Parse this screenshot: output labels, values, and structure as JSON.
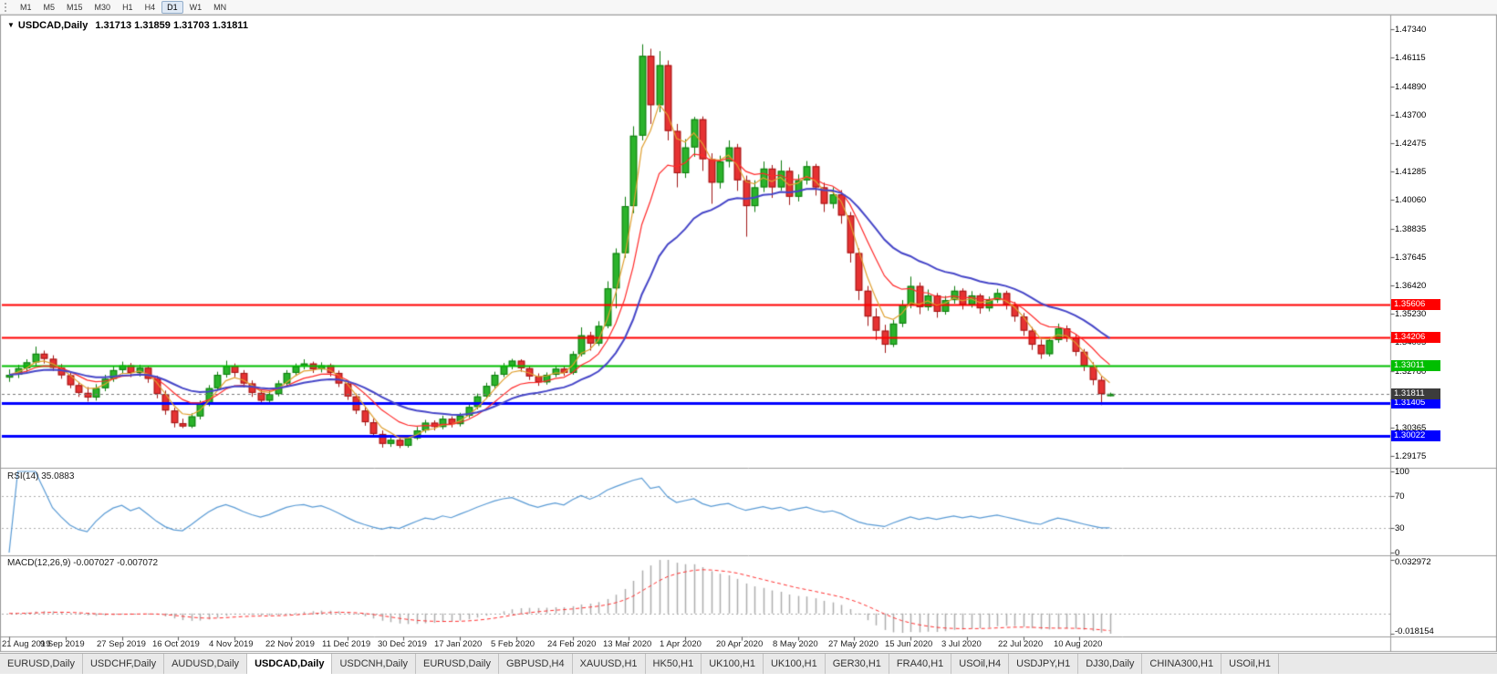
{
  "toolbar": {
    "timeframes": [
      "M1",
      "M5",
      "M15",
      "M30",
      "H1",
      "H4",
      "D1",
      "W1",
      "MN"
    ],
    "active_timeframe": "D1"
  },
  "chart_title": {
    "symbol": "USDCAD,Daily",
    "ohlc": "1.31713 1.31859 1.31703 1.31811"
  },
  "indicators": {
    "rsi_label": "RSI(14) 35.0883",
    "macd_label": "MACD(12,26,9) -0.007027 -0.007072"
  },
  "chart_data": {
    "type": "candlestick",
    "symbol": "USDCAD",
    "timeframe": "Daily",
    "x_labels": [
      "21 Aug 2019",
      "9 Sep 2019",
      "27 Sep 2019",
      "16 Oct 2019",
      "4 Nov 2019",
      "22 Nov 2019",
      "11 Dec 2019",
      "30 Dec 2019",
      "17 Jan 2020",
      "5 Feb 2020",
      "24 Feb 2020",
      "13 Mar 2020",
      "1 Apr 2020",
      "20 Apr 2020",
      "8 May 2020",
      "27 May 2020",
      "15 Jun 2020",
      "3 Jul 2020",
      "22 Jul 2020",
      "10 Aug 2020"
    ],
    "price_axis_labels": [
      "1.47340",
      "1.46115",
      "1.44890",
      "1.43700",
      "1.42475",
      "1.41285",
      "1.40060",
      "1.38835",
      "1.37645",
      "1.36420",
      "1.35230",
      "1.34005",
      "1.32780",
      "1.31590",
      "1.30365",
      "1.29175"
    ],
    "axis_range": {
      "top": 1.478,
      "bottom": 1.287
    },
    "colors": {
      "background": "#FFFFFF",
      "bull_body": "#2BB32B",
      "bull_border": "#0E7C0E",
      "bear_body": "#E63232",
      "bear_border": "#A01616",
      "ma_gold": "#E0A030",
      "ma_red": "#FF2A2A",
      "ma_blue": "#4646C8",
      "rsi_line": "#5A9BD5",
      "macd_hist": "#ADADAD",
      "macd_signal": "#FF3333",
      "level_red": "#FF0000",
      "level_green": "#00BE00",
      "level_blue": "#0000FF",
      "pane_border": "#9B9B9B",
      "current_price_tag": "#3C3C3C"
    },
    "moving_averages": [
      {
        "name": "ema-fast",
        "period": 4,
        "color": "#E0A030",
        "width": 1.2
      },
      {
        "name": "ema-mid",
        "period": 9,
        "color": "#FF2A2A",
        "width": 1.2
      },
      {
        "name": "ema-slow",
        "period": 20,
        "color": "#4646C8",
        "width": 2
      }
    ],
    "levels": [
      {
        "price": 1.35606,
        "label": "1.35606",
        "color": "#FF0000",
        "width": 2
      },
      {
        "price": 1.34206,
        "label": "1.34206",
        "color": "#FF0000",
        "width": 2
      },
      {
        "price": 1.33011,
        "label": "1.33011",
        "color": "#00BE00",
        "width": 2
      },
      {
        "price": 1.31405,
        "label": "1.31405",
        "color": "#0000FF",
        "width": 3
      },
      {
        "price": 1.30022,
        "label": "1.30022",
        "color": "#0000FF",
        "width": 3
      }
    ],
    "current_price": {
      "value": 1.31811,
      "label": "1.31811"
    },
    "rsi": {
      "period": 14,
      "levels": [
        70,
        30
      ],
      "axis_labels": [
        "100",
        "70",
        "30",
        "0"
      ],
      "axis_values": [
        100,
        70,
        30,
        0
      ],
      "range": [
        0,
        100
      ],
      "last_value": 35.0883
    },
    "macd": {
      "fast": 12,
      "slow": 26,
      "signal": 9,
      "axis_labels": [
        "0.032972",
        "-0.018154"
      ],
      "range": [
        -0.018154,
        0.032972
      ],
      "last_macd": -0.007027,
      "last_signal": -0.007072
    },
    "candles": [
      [
        1.325,
        1.3285,
        1.3232,
        1.3262
      ],
      [
        1.3262,
        1.3305,
        1.3248,
        1.329
      ],
      [
        1.329,
        1.3328,
        1.3275,
        1.3315
      ],
      [
        1.3315,
        1.3382,
        1.33,
        1.3352
      ],
      [
        1.3352,
        1.3365,
        1.331,
        1.333
      ],
      [
        1.333,
        1.3345,
        1.3278,
        1.3292
      ],
      [
        1.3292,
        1.3308,
        1.3245,
        1.326
      ],
      [
        1.326,
        1.3272,
        1.3205,
        1.3218
      ],
      [
        1.3218,
        1.3232,
        1.3168,
        1.3185
      ],
      [
        1.3185,
        1.321,
        1.3148,
        1.3165
      ],
      [
        1.3165,
        1.3222,
        1.3152,
        1.3205
      ],
      [
        1.3205,
        1.3262,
        1.3192,
        1.3245
      ],
      [
        1.3245,
        1.33,
        1.3232,
        1.3282
      ],
      [
        1.3282,
        1.3318,
        1.3265,
        1.3302
      ],
      [
        1.3302,
        1.3312,
        1.3252,
        1.327
      ],
      [
        1.327,
        1.3305,
        1.3255,
        1.3292
      ],
      [
        1.3292,
        1.33,
        1.3228,
        1.3245
      ],
      [
        1.3245,
        1.3258,
        1.3162,
        1.318
      ],
      [
        1.318,
        1.3195,
        1.3092,
        1.311
      ],
      [
        1.311,
        1.3122,
        1.3038,
        1.3056
      ],
      [
        1.3056,
        1.3075,
        1.3035,
        1.3042
      ],
      [
        1.3042,
        1.3098,
        1.3035,
        1.3085
      ],
      [
        1.3085,
        1.3152,
        1.3072,
        1.314
      ],
      [
        1.314,
        1.3218,
        1.3128,
        1.3205
      ],
      [
        1.3205,
        1.3275,
        1.3195,
        1.3262
      ],
      [
        1.3262,
        1.3322,
        1.325,
        1.33
      ],
      [
        1.33,
        1.331,
        1.3252,
        1.327
      ],
      [
        1.327,
        1.3282,
        1.3208,
        1.3225
      ],
      [
        1.3225,
        1.3238,
        1.3168,
        1.3185
      ],
      [
        1.3185,
        1.3198,
        1.314,
        1.3152
      ],
      [
        1.3152,
        1.3192,
        1.3142,
        1.318
      ],
      [
        1.318,
        1.3238,
        1.317,
        1.3225
      ],
      [
        1.3225,
        1.3282,
        1.3215,
        1.327
      ],
      [
        1.327,
        1.331,
        1.3258,
        1.3298
      ],
      [
        1.3298,
        1.3328,
        1.3285,
        1.331
      ],
      [
        1.331,
        1.3318,
        1.327,
        1.3285
      ],
      [
        1.3285,
        1.3315,
        1.3272,
        1.3302
      ],
      [
        1.3302,
        1.331,
        1.3255,
        1.327
      ],
      [
        1.327,
        1.328,
        1.321,
        1.3225
      ],
      [
        1.3225,
        1.3238,
        1.3155,
        1.317
      ],
      [
        1.317,
        1.3182,
        1.3095,
        1.311
      ],
      [
        1.311,
        1.3125,
        1.3045,
        1.306
      ],
      [
        1.306,
        1.3075,
        1.2995,
        1.301
      ],
      [
        1.301,
        1.3025,
        1.2952,
        1.2968
      ],
      [
        1.2968,
        1.3005,
        1.2955,
        1.2985
      ],
      [
        1.2985,
        1.2995,
        1.295,
        1.296
      ],
      [
        1.296,
        1.3005,
        1.2952,
        1.2992
      ],
      [
        1.2992,
        1.304,
        1.2985,
        1.3025
      ],
      [
        1.3025,
        1.307,
        1.3015,
        1.3058
      ],
      [
        1.3058,
        1.3068,
        1.3025,
        1.304
      ],
      [
        1.304,
        1.3088,
        1.303,
        1.3075
      ],
      [
        1.3075,
        1.3085,
        1.3038,
        1.3052
      ],
      [
        1.3052,
        1.31,
        1.3042,
        1.3088
      ],
      [
        1.3088,
        1.3138,
        1.3078,
        1.3125
      ],
      [
        1.3125,
        1.3182,
        1.3115,
        1.317
      ],
      [
        1.317,
        1.3228,
        1.316,
        1.3215
      ],
      [
        1.3215,
        1.3275,
        1.3205,
        1.3262
      ],
      [
        1.3262,
        1.3312,
        1.3252,
        1.33
      ],
      [
        1.33,
        1.333,
        1.3285,
        1.3322
      ],
      [
        1.3322,
        1.3328,
        1.3275,
        1.329
      ],
      [
        1.329,
        1.3298,
        1.324,
        1.3255
      ],
      [
        1.3255,
        1.3268,
        1.3215,
        1.323
      ],
      [
        1.323,
        1.3272,
        1.322,
        1.3262
      ],
      [
        1.3262,
        1.3298,
        1.3252,
        1.3288
      ],
      [
        1.3288,
        1.3298,
        1.3258,
        1.327
      ],
      [
        1.327,
        1.3362,
        1.3262,
        1.335
      ],
      [
        1.335,
        1.3464,
        1.334,
        1.343
      ],
      [
        1.343,
        1.3445,
        1.3365,
        1.3395
      ],
      [
        1.3395,
        1.349,
        1.3385,
        1.347
      ],
      [
        1.347,
        1.366,
        1.346,
        1.363
      ],
      [
        1.363,
        1.38,
        1.3545,
        1.378
      ],
      [
        1.378,
        1.402,
        1.376,
        1.398
      ],
      [
        1.398,
        1.432,
        1.395,
        1.428
      ],
      [
        1.428,
        1.4669,
        1.426,
        1.462
      ],
      [
        1.462,
        1.465,
        1.433,
        1.441
      ],
      [
        1.441,
        1.464,
        1.438,
        1.458
      ],
      [
        1.458,
        1.46,
        1.426,
        1.43
      ],
      [
        1.43,
        1.433,
        1.406,
        1.412
      ],
      [
        1.412,
        1.4265,
        1.41,
        1.423
      ],
      [
        1.423,
        1.436,
        1.419,
        1.435
      ],
      [
        1.435,
        1.4362,
        1.413,
        1.418
      ],
      [
        1.418,
        1.4205,
        1.399,
        1.408
      ],
      [
        1.408,
        1.4195,
        1.4055,
        1.417
      ],
      [
        1.417,
        1.426,
        1.4145,
        1.423
      ],
      [
        1.423,
        1.4245,
        1.4045,
        1.409
      ],
      [
        1.409,
        1.411,
        1.385,
        1.398
      ],
      [
        1.398,
        1.409,
        1.3955,
        1.406
      ],
      [
        1.406,
        1.417,
        1.404,
        1.414
      ],
      [
        1.414,
        1.4155,
        1.4015,
        1.406
      ],
      [
        1.406,
        1.4175,
        1.4045,
        1.413
      ],
      [
        1.413,
        1.4145,
        1.3985,
        1.402
      ],
      [
        1.402,
        1.4115,
        1.4,
        1.409
      ],
      [
        1.409,
        1.4172,
        1.4072,
        1.415
      ],
      [
        1.415,
        1.416,
        1.4025,
        1.406
      ],
      [
        1.406,
        1.408,
        1.3955,
        1.399
      ],
      [
        1.399,
        1.406,
        1.397,
        1.403
      ],
      [
        1.403,
        1.4048,
        1.3905,
        1.394
      ],
      [
        1.394,
        1.3955,
        1.374,
        1.378
      ],
      [
        1.378,
        1.38,
        1.358,
        1.362
      ],
      [
        1.362,
        1.364,
        1.347,
        1.351
      ],
      [
        1.351,
        1.3545,
        1.341,
        1.345
      ],
      [
        1.345,
        1.3475,
        1.3355,
        1.339
      ],
      [
        1.339,
        1.3495,
        1.338,
        1.348
      ],
      [
        1.348,
        1.358,
        1.3465,
        1.356
      ],
      [
        1.356,
        1.368,
        1.3545,
        1.364
      ],
      [
        1.364,
        1.3655,
        1.352,
        1.355
      ],
      [
        1.355,
        1.3625,
        1.3535,
        1.36
      ],
      [
        1.36,
        1.361,
        1.3505,
        1.353
      ],
      [
        1.353,
        1.3598,
        1.3518,
        1.358
      ],
      [
        1.358,
        1.364,
        1.3565,
        1.362
      ],
      [
        1.362,
        1.363,
        1.354,
        1.356
      ],
      [
        1.356,
        1.3618,
        1.3548,
        1.36
      ],
      [
        1.36,
        1.3608,
        1.3522,
        1.3545
      ],
      [
        1.3545,
        1.3595,
        1.3532,
        1.358
      ],
      [
        1.358,
        1.3628,
        1.3568,
        1.361
      ],
      [
        1.361,
        1.362,
        1.354,
        1.356
      ],
      [
        1.356,
        1.3572,
        1.3488,
        1.351
      ],
      [
        1.351,
        1.3525,
        1.3428,
        1.345
      ],
      [
        1.345,
        1.3465,
        1.3368,
        1.339
      ],
      [
        1.339,
        1.3412,
        1.333,
        1.335
      ],
      [
        1.335,
        1.3422,
        1.334,
        1.341
      ],
      [
        1.341,
        1.348,
        1.3398,
        1.346
      ],
      [
        1.346,
        1.3472,
        1.3402,
        1.342
      ],
      [
        1.342,
        1.3435,
        1.3342,
        1.336
      ],
      [
        1.336,
        1.3372,
        1.3278,
        1.33
      ],
      [
        1.33,
        1.3315,
        1.3218,
        1.324
      ],
      [
        1.324,
        1.3255,
        1.3133,
        1.318
      ],
      [
        1.31713,
        1.31859,
        1.31703,
        1.31811
      ]
    ]
  },
  "tabs": {
    "items": [
      "EURUSD,Daily",
      "USDCHF,Daily",
      "AUDUSD,Daily",
      "USDCAD,Daily",
      "USDCNH,Daily",
      "EURUSD,Daily",
      "GBPUSD,H4",
      "XAUUSD,H1",
      "HK50,H1",
      "UK100,H1",
      "UK100,H1",
      "GER30,H1",
      "FRA40,H1",
      "USOil,H4",
      "USDJPY,H1",
      "DJ30,Daily",
      "CHINA300,H1",
      "USOil,H1"
    ],
    "active_index": 3
  }
}
